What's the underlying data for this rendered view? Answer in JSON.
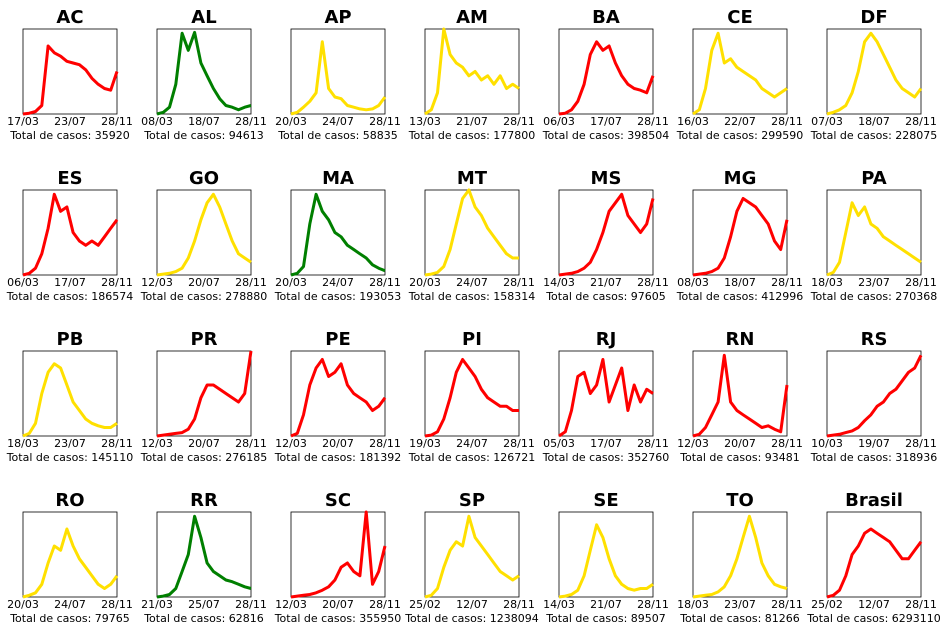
{
  "chart_data": [
    {
      "type": "line",
      "title": "AC",
      "color": "#ff0000",
      "values": [
        0,
        1,
        3,
        10,
        80,
        72,
        68,
        62,
        60,
        58,
        52,
        42,
        35,
        30,
        28,
        50
      ],
      "xlim": [
        0,
        15
      ],
      "ylim": [
        0,
        100
      ],
      "xticks": [
        {
          "value": 0,
          "label": "17/03"
        },
        {
          "value": 7.5,
          "label": "23/07"
        },
        {
          "value": 15,
          "label": "28/11"
        }
      ],
      "xlabel": "Total de casos: 35920"
    },
    {
      "type": "line",
      "title": "AL",
      "color": "#007f00",
      "values": [
        0,
        2,
        8,
        35,
        95,
        75,
        96,
        60,
        45,
        30,
        18,
        10,
        8,
        5,
        8,
        10
      ],
      "xlim": [
        0,
        15
      ],
      "ylim": [
        0,
        100
      ],
      "xticks": [
        {
          "value": 0,
          "label": "08/03"
        },
        {
          "value": 7.5,
          "label": "18/07"
        },
        {
          "value": 15,
          "label": "28/11"
        }
      ],
      "xlabel": "Total de casos: 94613"
    },
    {
      "type": "line",
      "title": "AP",
      "color": "#ffe000",
      "values": [
        0,
        2,
        8,
        15,
        25,
        85,
        30,
        20,
        18,
        10,
        8,
        6,
        5,
        6,
        10,
        20
      ],
      "xlim": [
        0,
        15
      ],
      "ylim": [
        0,
        100
      ],
      "xticks": [
        {
          "value": 0,
          "label": "20/03"
        },
        {
          "value": 7.5,
          "label": "24/07"
        },
        {
          "value": 15,
          "label": "28/11"
        }
      ],
      "xlabel": "Total de casos: 58835"
    },
    {
      "type": "line",
      "title": "AM",
      "color": "#ffe000",
      "values": [
        0,
        5,
        25,
        100,
        70,
        60,
        55,
        45,
        50,
        40,
        45,
        35,
        45,
        30,
        35,
        30
      ],
      "xlim": [
        0,
        15
      ],
      "ylim": [
        0,
        100
      ],
      "xticks": [
        {
          "value": 0,
          "label": "13/03"
        },
        {
          "value": 7.5,
          "label": "21/07"
        },
        {
          "value": 15,
          "label": "28/11"
        }
      ],
      "xlabel": "Total de casos: 177800"
    },
    {
      "type": "line",
      "title": "BA",
      "color": "#ff0000",
      "values": [
        0,
        1,
        5,
        15,
        35,
        70,
        85,
        75,
        80,
        60,
        45,
        35,
        30,
        28,
        25,
        45
      ],
      "xlim": [
        0,
        15
      ],
      "ylim": [
        0,
        100
      ],
      "xticks": [
        {
          "value": 0,
          "label": "06/03"
        },
        {
          "value": 7.5,
          "label": "17/07"
        },
        {
          "value": 15,
          "label": "28/11"
        }
      ],
      "xlabel": "Total de casos: 398504"
    },
    {
      "type": "line",
      "title": "CE",
      "color": "#ffe000",
      "values": [
        0,
        5,
        30,
        75,
        95,
        60,
        65,
        55,
        50,
        45,
        40,
        30,
        25,
        20,
        25,
        30
      ],
      "xlim": [
        0,
        15
      ],
      "ylim": [
        0,
        100
      ],
      "xticks": [
        {
          "value": 0,
          "label": "16/03"
        },
        {
          "value": 7.5,
          "label": "22/07"
        },
        {
          "value": 15,
          "label": "28/11"
        }
      ],
      "xlabel": "Total de casos: 299590"
    },
    {
      "type": "line",
      "title": "DF",
      "color": "#ffe000",
      "values": [
        0,
        2,
        5,
        10,
        25,
        50,
        85,
        95,
        85,
        70,
        55,
        40,
        30,
        25,
        20,
        30
      ],
      "xlim": [
        0,
        15
      ],
      "ylim": [
        0,
        100
      ],
      "xticks": [
        {
          "value": 0,
          "label": "07/03"
        },
        {
          "value": 7.5,
          "label": "18/07"
        },
        {
          "value": 15,
          "label": "28/11"
        }
      ],
      "xlabel": "Total de casos: 228075"
    },
    {
      "type": "line",
      "title": "ES",
      "color": "#ff0000",
      "values": [
        0,
        2,
        8,
        25,
        55,
        95,
        75,
        80,
        50,
        40,
        35,
        40,
        35,
        45,
        55,
        65
      ],
      "xlim": [
        0,
        15
      ],
      "ylim": [
        0,
        100
      ],
      "xticks": [
        {
          "value": 0,
          "label": "06/03"
        },
        {
          "value": 7.5,
          "label": "17/07"
        },
        {
          "value": 15,
          "label": "28/11"
        }
      ],
      "xlabel": "Total de casos: 186574"
    },
    {
      "type": "line",
      "title": "GO",
      "color": "#ffe000",
      "values": [
        0,
        1,
        2,
        4,
        8,
        20,
        40,
        65,
        85,
        95,
        80,
        60,
        40,
        25,
        20,
        15
      ],
      "xlim": [
        0,
        15
      ],
      "ylim": [
        0,
        100
      ],
      "xticks": [
        {
          "value": 0,
          "label": "12/03"
        },
        {
          "value": 7.5,
          "label": "20/07"
        },
        {
          "value": 15,
          "label": "28/11"
        }
      ],
      "xlabel": "Total de casos: 278880"
    },
    {
      "type": "line",
      "title": "MA",
      "color": "#007f00",
      "values": [
        0,
        2,
        10,
        60,
        95,
        75,
        65,
        50,
        45,
        35,
        30,
        25,
        20,
        12,
        8,
        5
      ],
      "xlim": [
        0,
        15
      ],
      "ylim": [
        0,
        100
      ],
      "xticks": [
        {
          "value": 0,
          "label": "20/03"
        },
        {
          "value": 7.5,
          "label": "24/07"
        },
        {
          "value": 15,
          "label": "28/11"
        }
      ],
      "xlabel": "Total de casos: 193053"
    },
    {
      "type": "line",
      "title": "MT",
      "color": "#ffe000",
      "values": [
        0,
        1,
        3,
        10,
        30,
        60,
        90,
        100,
        80,
        70,
        55,
        45,
        35,
        25,
        20,
        20
      ],
      "xlim": [
        0,
        15
      ],
      "ylim": [
        0,
        100
      ],
      "xticks": [
        {
          "value": 0,
          "label": "20/03"
        },
        {
          "value": 7.5,
          "label": "24/07"
        },
        {
          "value": 15,
          "label": "28/11"
        }
      ],
      "xlabel": "Total de casos: 158314"
    },
    {
      "type": "line",
      "title": "MS",
      "color": "#ff0000",
      "values": [
        0,
        1,
        2,
        4,
        8,
        15,
        30,
        50,
        75,
        85,
        95,
        70,
        60,
        50,
        60,
        90
      ],
      "xlim": [
        0,
        15
      ],
      "ylim": [
        0,
        100
      ],
      "xticks": [
        {
          "value": 0,
          "label": "14/03"
        },
        {
          "value": 7.5,
          "label": "21/07"
        },
        {
          "value": 15,
          "label": "28/11"
        }
      ],
      "xlabel": "Total de casos: 97605"
    },
    {
      "type": "line",
      "title": "MG",
      "color": "#ff0000",
      "values": [
        0,
        1,
        2,
        4,
        8,
        20,
        45,
        75,
        90,
        85,
        80,
        70,
        60,
        40,
        30,
        65
      ],
      "xlim": [
        0,
        15
      ],
      "ylim": [
        0,
        100
      ],
      "xticks": [
        {
          "value": 0,
          "label": "08/03"
        },
        {
          "value": 7.5,
          "label": "18/07"
        },
        {
          "value": 15,
          "label": "28/11"
        }
      ],
      "xlabel": "Total de casos: 412996"
    },
    {
      "type": "line",
      "title": "PA",
      "color": "#ffe000",
      "values": [
        0,
        3,
        15,
        50,
        85,
        70,
        80,
        60,
        55,
        45,
        40,
        35,
        30,
        25,
        20,
        15
      ],
      "xlim": [
        0,
        15
      ],
      "ylim": [
        0,
        100
      ],
      "xticks": [
        {
          "value": 0,
          "label": "18/03"
        },
        {
          "value": 7.5,
          "label": "23/07"
        },
        {
          "value": 15,
          "label": "28/11"
        }
      ],
      "xlabel": "Total de casos: 270368"
    },
    {
      "type": "line",
      "title": "PB",
      "color": "#ffe000",
      "values": [
        0,
        3,
        15,
        50,
        75,
        85,
        80,
        60,
        40,
        30,
        20,
        15,
        12,
        10,
        10,
        15
      ],
      "xlim": [
        0,
        15
      ],
      "ylim": [
        0,
        100
      ],
      "xticks": [
        {
          "value": 0,
          "label": "18/03"
        },
        {
          "value": 7.5,
          "label": "23/07"
        },
        {
          "value": 15,
          "label": "28/11"
        }
      ],
      "xlabel": "Total de casos: 145110"
    },
    {
      "type": "line",
      "title": "PR",
      "color": "#ff0000",
      "values": [
        0,
        1,
        2,
        3,
        4,
        8,
        20,
        45,
        60,
        60,
        55,
        50,
        45,
        40,
        50,
        100
      ],
      "xlim": [
        0,
        15
      ],
      "ylim": [
        0,
        100
      ],
      "xticks": [
        {
          "value": 0,
          "label": "12/03"
        },
        {
          "value": 7.5,
          "label": "20/07"
        },
        {
          "value": 15,
          "label": "28/11"
        }
      ],
      "xlabel": "Total de casos: 276185"
    },
    {
      "type": "line",
      "title": "PE",
      "color": "#ff0000",
      "values": [
        0,
        3,
        25,
        60,
        80,
        90,
        70,
        75,
        85,
        60,
        50,
        45,
        40,
        30,
        35,
        45
      ],
      "xlim": [
        0,
        15
      ],
      "ylim": [
        0,
        100
      ],
      "xticks": [
        {
          "value": 0,
          "label": "12/03"
        },
        {
          "value": 7.5,
          "label": "20/07"
        },
        {
          "value": 15,
          "label": "28/11"
        }
      ],
      "xlabel": "Total de casos: 181392"
    },
    {
      "type": "line",
      "title": "PI",
      "color": "#ff0000",
      "values": [
        0,
        1,
        5,
        20,
        45,
        75,
        90,
        80,
        70,
        55,
        45,
        40,
        35,
        35,
        30,
        30
      ],
      "xlim": [
        0,
        15
      ],
      "ylim": [
        0,
        100
      ],
      "xticks": [
        {
          "value": 0,
          "label": "19/03"
        },
        {
          "value": 7.5,
          "label": "24/07"
        },
        {
          "value": 15,
          "label": "28/11"
        }
      ],
      "xlabel": "Total de casos: 126721"
    },
    {
      "type": "line",
      "title": "RJ",
      "color": "#ff0000",
      "values": [
        0,
        5,
        30,
        70,
        75,
        50,
        60,
        90,
        40,
        60,
        80,
        30,
        60,
        40,
        55,
        50
      ],
      "xlim": [
        0,
        15
      ],
      "ylim": [
        0,
        100
      ],
      "xticks": [
        {
          "value": 0,
          "label": "05/03"
        },
        {
          "value": 7.5,
          "label": "17/07"
        },
        {
          "value": 15,
          "label": "28/11"
        }
      ],
      "xlabel": "Total de casos: 352760"
    },
    {
      "type": "line",
      "title": "RN",
      "color": "#ff0000",
      "values": [
        0,
        2,
        10,
        25,
        40,
        95,
        40,
        30,
        25,
        20,
        15,
        10,
        12,
        8,
        5,
        60
      ],
      "xlim": [
        0,
        15
      ],
      "ylim": [
        0,
        100
      ],
      "xticks": [
        {
          "value": 0,
          "label": "12/03"
        },
        {
          "value": 7.5,
          "label": "20/07"
        },
        {
          "value": 15,
          "label": "28/11"
        }
      ],
      "xlabel": "Total de casos: 93481"
    },
    {
      "type": "line",
      "title": "RS",
      "color": "#ff0000",
      "values": [
        0,
        1,
        2,
        4,
        6,
        10,
        18,
        25,
        35,
        40,
        50,
        55,
        65,
        75,
        80,
        95
      ],
      "xlim": [
        0,
        15
      ],
      "ylim": [
        0,
        100
      ],
      "xticks": [
        {
          "value": 0,
          "label": "10/03"
        },
        {
          "value": 7.5,
          "label": "19/07"
        },
        {
          "value": 15,
          "label": "28/11"
        }
      ],
      "xlabel": "Total de casos: 318936"
    },
    {
      "type": "line",
      "title": "RO",
      "color": "#ffe000",
      "values": [
        0,
        2,
        5,
        15,
        40,
        60,
        55,
        80,
        60,
        45,
        35,
        25,
        15,
        10,
        15,
        25
      ],
      "xlim": [
        0,
        15
      ],
      "ylim": [
        0,
        100
      ],
      "xticks": [
        {
          "value": 0,
          "label": "20/03"
        },
        {
          "value": 7.5,
          "label": "24/07"
        },
        {
          "value": 15,
          "label": "28/11"
        }
      ],
      "xlabel": "Total de casos: 79765"
    },
    {
      "type": "line",
      "title": "RR",
      "color": "#007f00",
      "values": [
        0,
        1,
        3,
        10,
        30,
        50,
        95,
        70,
        40,
        30,
        25,
        20,
        18,
        15,
        12,
        10
      ],
      "xlim": [
        0,
        15
      ],
      "ylim": [
        0,
        100
      ],
      "xticks": [
        {
          "value": 0,
          "label": "21/03"
        },
        {
          "value": 7.5,
          "label": "25/07"
        },
        {
          "value": 15,
          "label": "28/11"
        }
      ],
      "xlabel": "Total de casos: 62816"
    },
    {
      "type": "line",
      "title": "SC",
      "color": "#ff0000",
      "values": [
        0,
        1,
        2,
        3,
        5,
        8,
        12,
        20,
        35,
        40,
        30,
        25,
        100,
        15,
        30,
        60
      ],
      "xlim": [
        0,
        15
      ],
      "ylim": [
        0,
        100
      ],
      "xticks": [
        {
          "value": 0,
          "label": "12/03"
        },
        {
          "value": 7.5,
          "label": "20/07"
        },
        {
          "value": 15,
          "label": "28/11"
        }
      ],
      "xlabel": "Total de casos: 355950"
    },
    {
      "type": "line",
      "title": "SP",
      "color": "#ffe000",
      "values": [
        0,
        2,
        10,
        35,
        55,
        65,
        60,
        95,
        70,
        60,
        50,
        40,
        30,
        25,
        20,
        25
      ],
      "xlim": [
        0,
        15
      ],
      "ylim": [
        0,
        100
      ],
      "xticks": [
        {
          "value": 0,
          "label": "25/02"
        },
        {
          "value": 7.5,
          "label": "12/07"
        },
        {
          "value": 15,
          "label": "28/11"
        }
      ],
      "xlabel": "Total de casos: 1238094"
    },
    {
      "type": "line",
      "title": "SE",
      "color": "#ffe000",
      "values": [
        0,
        1,
        3,
        8,
        25,
        55,
        85,
        70,
        45,
        25,
        15,
        10,
        8,
        10,
        10,
        15
      ],
      "xlim": [
        0,
        15
      ],
      "ylim": [
        0,
        100
      ],
      "xticks": [
        {
          "value": 0,
          "label": "14/03"
        },
        {
          "value": 7.5,
          "label": "21/07"
        },
        {
          "value": 15,
          "label": "28/11"
        }
      ],
      "xlabel": "Total de casos: 89507"
    },
    {
      "type": "line",
      "title": "TO",
      "color": "#ffe000",
      "values": [
        0,
        1,
        2,
        3,
        6,
        12,
        25,
        45,
        70,
        95,
        70,
        40,
        25,
        15,
        12,
        10
      ],
      "xlim": [
        0,
        15
      ],
      "ylim": [
        0,
        100
      ],
      "xticks": [
        {
          "value": 0,
          "label": "18/03"
        },
        {
          "value": 7.5,
          "label": "23/07"
        },
        {
          "value": 15,
          "label": "28/11"
        }
      ],
      "xlabel": "Total de casos: 81266"
    },
    {
      "type": "line",
      "title": "Brasil",
      "color": "#ff0000",
      "values": [
        0,
        2,
        8,
        25,
        50,
        60,
        75,
        80,
        75,
        70,
        65,
        55,
        45,
        45,
        55,
        65
      ],
      "xlim": [
        0,
        15
      ],
      "ylim": [
        0,
        100
      ],
      "xticks": [
        {
          "value": 0,
          "label": "25/02"
        },
        {
          "value": 7.5,
          "label": "12/07"
        },
        {
          "value": 15,
          "label": "28/11"
        }
      ],
      "xlabel": "Total de casos: 6293110"
    }
  ]
}
